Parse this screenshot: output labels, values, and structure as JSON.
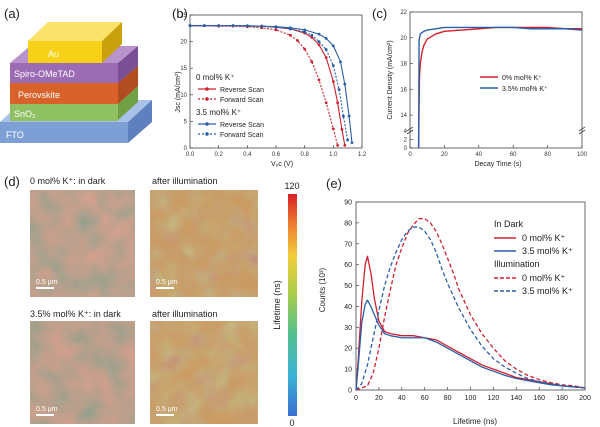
{
  "panels": {
    "a": "(a)",
    "b": "(b)",
    "c": "(c)",
    "d": "(d)",
    "e": "(e)"
  },
  "stack": {
    "layers": [
      {
        "label": "Au",
        "color": "#f7d117"
      },
      {
        "label": "Spiro-OMeTAD",
        "color": "#9b6bb4"
      },
      {
        "label": "Perovskite",
        "color": "#d9622b"
      },
      {
        "label": "SnO₂",
        "color": "#8fc163"
      },
      {
        "label": "FTO",
        "color": "#7e9ed6"
      }
    ]
  },
  "maps": {
    "titles": [
      "0 mol% K⁺: in dark",
      "after illumination",
      "3.5% mol% K⁺: in dark",
      "after illumination"
    ],
    "scalebar": "0.5 μm",
    "colorbar": {
      "label": "Lifetime (ns)",
      "max": "120",
      "min": "0"
    }
  },
  "chart_data": [
    {
      "id": "b",
      "type": "line",
      "xlabel": "Vₒc (V)",
      "ylabel": "Jsc (mA/cm²)",
      "xlim": [
        0.0,
        1.2
      ],
      "ylim": [
        0,
        25
      ],
      "xticks": [
        "0.0",
        "0.2",
        "0.4",
        "0.6",
        "0.8",
        "1.0",
        "1.2"
      ],
      "yticks": [
        "0",
        "5",
        "10",
        "15",
        "20",
        "25"
      ],
      "legend_groups": [
        "0 mol% K⁺",
        "3.5 mol% K⁺"
      ],
      "series": [
        {
          "name": "Reverse Scan",
          "group": "0 mol% K⁺",
          "color": "#d0202e",
          "dash": false,
          "x": [
            0.0,
            0.1,
            0.2,
            0.3,
            0.4,
            0.5,
            0.6,
            0.7,
            0.8,
            0.85,
            0.9,
            0.95,
            1.0,
            1.03,
            1.06,
            1.08
          ],
          "y": [
            23.0,
            23.0,
            23.0,
            23.0,
            22.9,
            22.9,
            22.7,
            22.4,
            21.6,
            20.8,
            19.4,
            17.0,
            12.5,
            8.5,
            3.5,
            0.5
          ]
        },
        {
          "name": "Forward Scan",
          "group": "0 mol% K⁺",
          "color": "#d0202e",
          "dash": true,
          "x": [
            0.0,
            0.1,
            0.2,
            0.3,
            0.4,
            0.5,
            0.6,
            0.7,
            0.75,
            0.8,
            0.85,
            0.9,
            0.95,
            1.0,
            1.03
          ],
          "y": [
            23.0,
            23.0,
            22.9,
            22.9,
            22.8,
            22.6,
            22.2,
            21.2,
            20.2,
            18.6,
            16.2,
            12.8,
            8.5,
            3.6,
            0.5
          ]
        },
        {
          "name": "Reverse Scan",
          "group": "3.5 mol% K⁺",
          "color": "#2a5fa8",
          "dash": false,
          "x": [
            0.0,
            0.1,
            0.2,
            0.3,
            0.4,
            0.5,
            0.6,
            0.7,
            0.8,
            0.9,
            0.95,
            1.0,
            1.05,
            1.08,
            1.11,
            1.13
          ],
          "y": [
            23.0,
            23.0,
            23.0,
            23.0,
            23.0,
            22.9,
            22.8,
            22.6,
            22.2,
            21.4,
            20.6,
            19.2,
            16.2,
            12.0,
            6.0,
            1.0
          ]
        },
        {
          "name": "Forward Scan",
          "group": "3.5 mol% K⁺",
          "color": "#2a5fa8",
          "dash": true,
          "x": [
            0.0,
            0.1,
            0.2,
            0.3,
            0.4,
            0.5,
            0.6,
            0.7,
            0.8,
            0.85,
            0.9,
            0.95,
            1.0,
            1.04,
            1.07,
            1.1
          ],
          "y": [
            23.0,
            23.0,
            23.0,
            23.0,
            22.9,
            22.9,
            22.7,
            22.4,
            21.8,
            21.2,
            20.0,
            18.5,
            15.5,
            11.0,
            6.0,
            1.5
          ]
        }
      ]
    },
    {
      "id": "c",
      "type": "line",
      "xlabel": "Decay Time (s)",
      "ylabel": "Current Density (mA/cm²)",
      "xlim": [
        0,
        100
      ],
      "ylim_lower": [
        0,
        4
      ],
      "ylim_upper": [
        13,
        22
      ],
      "xticks": [
        "0",
        "20",
        "40",
        "60",
        "80",
        "100"
      ],
      "yticks_upper": [
        "14",
        "16",
        "18",
        "20",
        "22"
      ],
      "yticks_lower": [
        "0",
        "2",
        "4"
      ],
      "series": [
        {
          "name": "0% mol% K⁺",
          "color": "#d0202e",
          "x": [
            5,
            5.5,
            6,
            7,
            8,
            10,
            15,
            20,
            30,
            40,
            50,
            60,
            70,
            80,
            90,
            100
          ],
          "y": [
            0,
            17.0,
            18.0,
            18.9,
            19.4,
            19.9,
            20.3,
            20.5,
            20.6,
            20.7,
            20.8,
            20.8,
            20.8,
            20.8,
            20.7,
            20.7
          ]
        },
        {
          "name": "3.5% mol% K⁺",
          "color": "#2a5fa8",
          "x": [
            5,
            5.3,
            6,
            8,
            10,
            15,
            20,
            30,
            40,
            50,
            60,
            70,
            80,
            90,
            100
          ],
          "y": [
            0,
            19.8,
            20.3,
            20.5,
            20.6,
            20.7,
            20.8,
            20.8,
            20.8,
            20.8,
            20.8,
            20.7,
            20.7,
            20.7,
            20.6
          ]
        }
      ]
    },
    {
      "id": "e",
      "type": "line",
      "xlabel": "Lifetime (ns)",
      "ylabel": "Counts (10³)",
      "xlim": [
        0,
        200
      ],
      "ylim": [
        0,
        90
      ],
      "xticks": [
        "0",
        "20",
        "40",
        "60",
        "80",
        "100",
        "120",
        "140",
        "160",
        "180",
        "200"
      ],
      "yticks": [
        "0",
        "10",
        "20",
        "30",
        "40",
        "50",
        "60",
        "70",
        "80",
        "90"
      ],
      "legend_groups": [
        "In Dark",
        "Illumination"
      ],
      "series": [
        {
          "name": "0 mol% K⁺",
          "group": "In Dark",
          "color": "#d0202e",
          "dash": false,
          "x": [
            0,
            2,
            5,
            8,
            10,
            13,
            16,
            20,
            25,
            30,
            40,
            50,
            60,
            70,
            80,
            90,
            100,
            110,
            120,
            130,
            140,
            150,
            160,
            170,
            180,
            190,
            200
          ],
          "y": [
            0,
            15,
            42,
            60,
            64,
            56,
            44,
            33,
            28,
            27,
            26,
            26,
            25,
            24,
            21,
            18,
            15,
            12,
            10,
            8,
            6,
            5,
            4,
            3,
            2,
            1.5,
            1
          ]
        },
        {
          "name": "3.5 mol% K⁺",
          "group": "In Dark",
          "color": "#2a5fa8",
          "dash": false,
          "x": [
            0,
            2,
            5,
            8,
            10,
            13,
            16,
            20,
            25,
            30,
            40,
            50,
            60,
            70,
            80,
            90,
            100,
            110,
            120,
            130,
            140,
            150,
            160,
            170,
            180,
            190,
            200
          ],
          "y": [
            0,
            12,
            32,
            41,
            43,
            40,
            36,
            31,
            27,
            26,
            25,
            25,
            25,
            23,
            20,
            17,
            14,
            11,
            9,
            7,
            5.5,
            4.5,
            3.5,
            2.5,
            2,
            1.5,
            1
          ]
        },
        {
          "name": "0 mol% K⁺",
          "group": "Illumination",
          "color": "#d0202e",
          "dash": true,
          "x": [
            0,
            10,
            15,
            20,
            25,
            30,
            35,
            40,
            45,
            50,
            55,
            60,
            65,
            70,
            75,
            80,
            85,
            90,
            100,
            110,
            120,
            130,
            140,
            150,
            160,
            170,
            180,
            190,
            200
          ],
          "y": [
            0,
            2,
            8,
            20,
            35,
            48,
            60,
            68,
            75,
            79,
            82,
            82,
            80,
            76,
            70,
            63,
            56,
            48,
            36,
            27,
            20,
            14,
            10,
            7,
            5,
            3.5,
            2.5,
            2,
            1
          ]
        },
        {
          "name": "3.5 mol% K⁺",
          "group": "Illumination",
          "color": "#2a5fa8",
          "dash": true,
          "x": [
            0,
            5,
            10,
            15,
            20,
            25,
            30,
            35,
            40,
            45,
            50,
            55,
            60,
            65,
            70,
            75,
            80,
            90,
            100,
            110,
            120,
            130,
            140,
            150,
            160,
            170,
            180,
            190,
            200
          ],
          "y": [
            0,
            3,
            12,
            25,
            38,
            50,
            59,
            66,
            72,
            76,
            78,
            78,
            76,
            72,
            66,
            58,
            51,
            39,
            29,
            21,
            15,
            11,
            8,
            5.5,
            4,
            3,
            2,
            1.5,
            1
          ]
        }
      ]
    }
  ]
}
